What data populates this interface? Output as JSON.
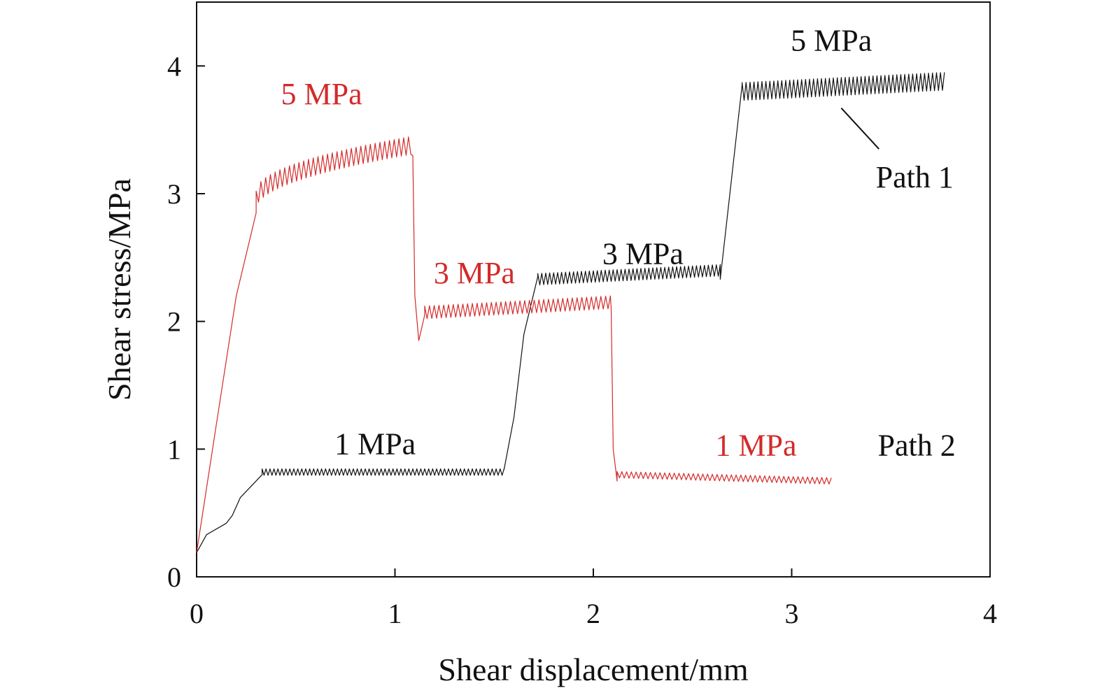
{
  "chart_data": {
    "type": "line",
    "xlabel": "Shear displacement/mm",
    "ylabel": "Shear stress/MPa",
    "xlim": [
      0,
      4
    ],
    "ylim": [
      0,
      4.5
    ],
    "xticks": [
      0,
      1,
      2,
      3,
      4
    ],
    "yticks": [
      0,
      1,
      2,
      3,
      4
    ],
    "grid": false,
    "colors": {
      "path1": "#111111",
      "path2": "#d42a2a"
    },
    "series": [
      {
        "name": "Path 1",
        "color": "#111111",
        "oscillation_step": 0.01,
        "stages": [
          {
            "label": "1 MPa",
            "ramp": [
              [
                0,
                0.19
              ],
              [
                0.05,
                0.33
              ],
              [
                0.15,
                0.42
              ],
              [
                0.18,
                0.48
              ],
              [
                0.22,
                0.62
              ],
              [
                0.33,
                0.8
              ]
            ],
            "osc_start": 0.33,
            "osc_end": 1.55,
            "level_start": 0.82,
            "level_end": 0.82,
            "amplitude": 0.05
          },
          {
            "label": "3 MPa",
            "ramp": [
              [
                1.55,
                0.84
              ],
              [
                1.6,
                1.25
              ],
              [
                1.65,
                1.9
              ],
              [
                1.72,
                2.35
              ]
            ],
            "osc_start": 1.72,
            "osc_end": 2.64,
            "level_start": 2.33,
            "level_end": 2.4,
            "amplitude": 0.09
          },
          {
            "label": "5 MPa",
            "ramp": [
              [
                2.64,
                2.33
              ],
              [
                2.75,
                3.85
              ]
            ],
            "osc_start": 2.75,
            "osc_end": 3.77,
            "level_start": 3.8,
            "level_end": 3.88,
            "amplitude": 0.14
          }
        ]
      },
      {
        "name": "Path 2",
        "color": "#d42a2a",
        "oscillation_step": 0.012,
        "stages": [
          {
            "label": "5 MPa",
            "ramp": [
              [
                0,
                0.19
              ],
              [
                0.1,
                1.2
              ],
              [
                0.2,
                2.2
              ],
              [
                0.3,
                2.85
              ]
            ],
            "osc_start": 0.3,
            "osc_end": 1.09,
            "level_start": 2.95,
            "level_end": 3.38,
            "level_curve": "rising",
            "amplitude": 0.14
          },
          {
            "label": "3 MPa",
            "ramp": [
              [
                1.09,
                3.3
              ],
              [
                1.1,
                2.2
              ],
              [
                1.12,
                1.85
              ],
              [
                1.15,
                2.05
              ]
            ],
            "osc_start": 1.15,
            "osc_end": 2.09,
            "level_start": 2.07,
            "level_end": 2.15,
            "amplitude": 0.1
          },
          {
            "label": "1 MPa",
            "ramp": [
              [
                2.09,
                2.1
              ],
              [
                2.1,
                1.0
              ],
              [
                2.12,
                0.75
              ]
            ],
            "osc_start": 2.12,
            "osc_end": 3.21,
            "level_start": 0.8,
            "level_end": 0.75,
            "amplitude": 0.05
          }
        ]
      }
    ],
    "annotations": [
      {
        "text": "5 MPa",
        "color": "#d42a2a",
        "x": 0.63,
        "y": 3.7
      },
      {
        "text": "3 MPa",
        "color": "#d42a2a",
        "x": 1.4,
        "y": 2.3
      },
      {
        "text": "1 MPa",
        "color": "#d42a2a",
        "x": 2.82,
        "y": 0.95
      },
      {
        "text": "1 MPa",
        "color": "#111111",
        "x": 0.9,
        "y": 0.96
      },
      {
        "text": "3 MPa",
        "color": "#111111",
        "x": 2.25,
        "y": 2.45
      },
      {
        "text": "5 MPa",
        "color": "#111111",
        "x": 3.2,
        "y": 4.12
      },
      {
        "text": "Path 1",
        "color": "#111111",
        "x": 3.62,
        "y": 3.05
      },
      {
        "text": "Path 2",
        "color": "#111111",
        "x": 3.63,
        "y": 0.95
      }
    ],
    "leader_line": {
      "from": [
        3.25,
        3.67
      ],
      "to": [
        3.44,
        3.35
      ]
    }
  }
}
